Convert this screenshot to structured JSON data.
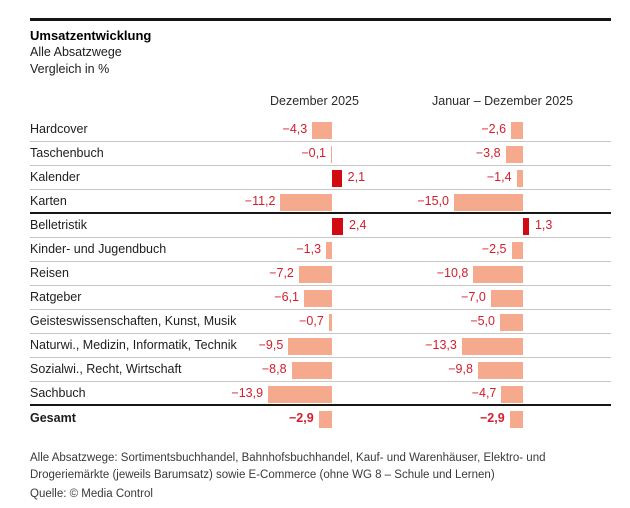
{
  "header": {
    "title": "Umsatzentwicklung",
    "subtitle_line1": "Alle Absatzwege",
    "subtitle_line2": "Vergleich in %"
  },
  "chart_data": {
    "type": "bar",
    "orientation": "horizontal",
    "title": "Umsatzentwicklung",
    "subtitle": "Alle Absatzwege, Vergleich in %",
    "unit": "%",
    "value_axis_range": [
      -16,
      4
    ],
    "grid": false,
    "legend_position": "column-headers-top",
    "categories": [
      "Hardcover",
      "Taschenbuch",
      "Kalender",
      "Karten",
      "Belletristik",
      "Kinder- und Jugendbuch",
      "Reisen",
      "Ratgeber",
      "Geisteswissenschaften, Kunst, Musik",
      "Naturwi., Medizin, Informatik, Technik",
      "Sozialwi., Recht, Wirtschaft",
      "Sachbuch",
      "Gesamt"
    ],
    "series": [
      {
        "name": "Dezember 2025",
        "values": [
          -4.3,
          -0.1,
          2.1,
          -11.2,
          2.4,
          -1.3,
          -7.2,
          -6.1,
          -0.7,
          -9.5,
          -8.8,
          -13.9,
          -2.9
        ],
        "labels": [
          "−4,3",
          "−0,1",
          "2,1",
          "−11,2",
          "2,4",
          "−1,3",
          "−7,2",
          "−6,1",
          "−0,7",
          "−9,5",
          "−8,8",
          "−13,9",
          "−2,9"
        ]
      },
      {
        "name": "Januar – Dezember 2025",
        "values": [
          -2.6,
          -3.8,
          -1.4,
          -15.0,
          1.3,
          -2.5,
          -10.8,
          -7.0,
          -5.0,
          -13.3,
          -9.8,
          -4.7,
          -2.9
        ],
        "labels": [
          "−2,6",
          "−3,8",
          "−1,4",
          "−15,0",
          "1,3",
          "−2,5",
          "−10,8",
          "−7,0",
          "−5,0",
          "−13,3",
          "−9,8",
          "−4,7",
          "−2,9"
        ]
      }
    ],
    "thick_separator_after_rows": [
      3,
      11
    ],
    "bold_row_index": 12,
    "colors": {
      "negative_bar": "#f5aa8e",
      "positive_bar": "#d20a11",
      "value_text": "#d51d2c",
      "rule": "#161615",
      "row_line": "#c7c7c7"
    }
  },
  "footnote": "Alle Absatzwege: Sortimentsbuchhandel, Bahnhofsbuchhandel, Kauf- und Warenhäuser, Elektro- und Drogeriemärkte (jeweils Barumsatz) sowie E-Commerce (ohne WG 8 – Schule und Lernen)",
  "source": "Quelle: © Media Control"
}
